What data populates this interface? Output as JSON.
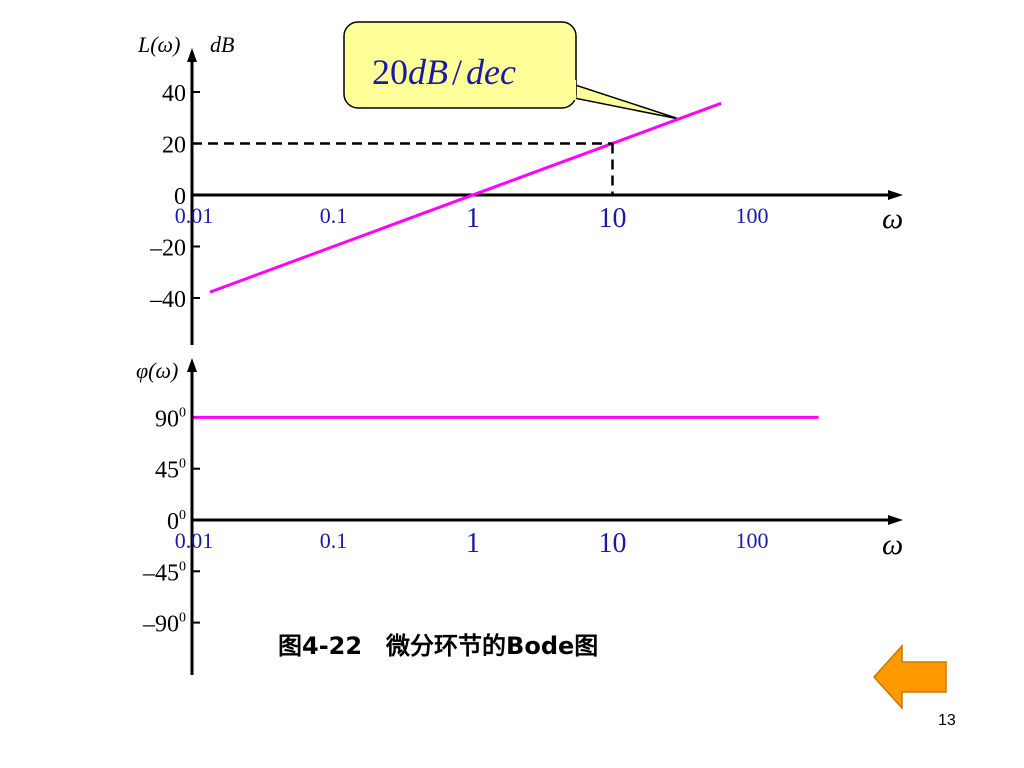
{
  "chart_data": [
    {
      "type": "line",
      "ylabel_func": "L(ω)",
      "ylabel_unit": "dB",
      "xlabel": "ω",
      "x_scale": "log",
      "x_ticks": [
        "0.01",
        "0.1",
        "1",
        "10",
        "100"
      ],
      "y_ticks": [
        "40",
        "20",
        "0",
        "–20",
        "–40"
      ],
      "ylim": [
        -40,
        40
      ],
      "series": [
        {
          "x": [
            0.013,
            60
          ],
          "y": [
            -37.7,
            35.6
          ],
          "color": "#ff00ff"
        }
      ],
      "guide": {
        "x": 10,
        "y": 20,
        "style": "dashed"
      },
      "annotation": {
        "text_num": "20",
        "text_unit": "dB",
        "text_sep": "/",
        "text_rest": "dec",
        "target_x": 30,
        "target_y": 29.5
      }
    },
    {
      "type": "line",
      "ylabel": "φ(ω)",
      "xlabel": "ω",
      "x_scale": "log",
      "x_ticks": [
        "0.01",
        "0.1",
        "1",
        "10",
        "100"
      ],
      "y_ticks": [
        {
          "base": "90",
          "sup": "0"
        },
        {
          "base": "45",
          "sup": "0"
        },
        {
          "base": "0",
          "sup": "0"
        },
        {
          "base": "–45",
          "sup": "0"
        },
        {
          "base": "–90",
          "sup": "0"
        }
      ],
      "ylim": [
        -90,
        90
      ],
      "series": [
        {
          "x": [
            0.01,
            300
          ],
          "y": [
            90,
            90
          ],
          "color": "#ff00ff"
        }
      ]
    }
  ],
  "caption": "图4-22　微分环节的Bode图",
  "page_number": "13",
  "colors": {
    "line": "#ff00ff",
    "callout_fill": "#ffff99",
    "tick_label": "#1a1aa6",
    "nav_arrow": "#ff9900"
  },
  "nav": {
    "back_icon": "left-arrow-icon"
  }
}
